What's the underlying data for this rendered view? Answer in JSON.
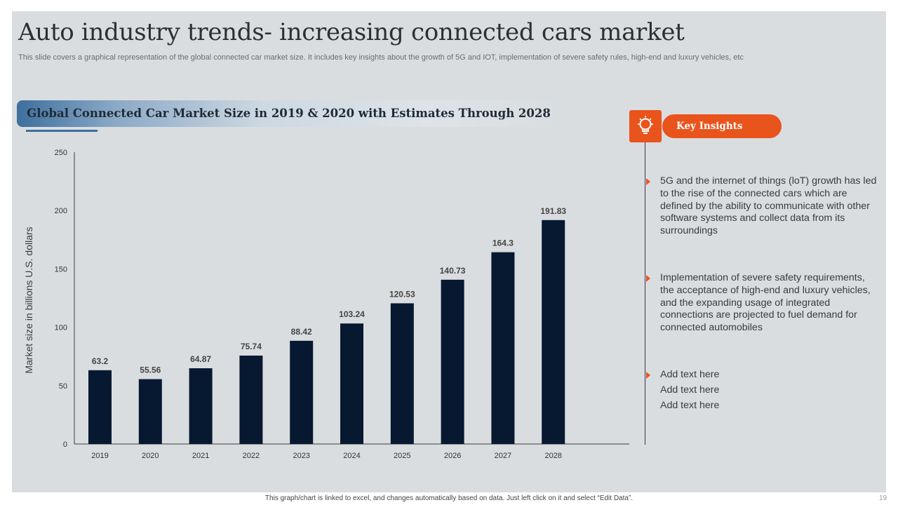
{
  "slide": {
    "title": "Auto industry trends- increasing connected cars market",
    "subtitle": "This slide covers a graphical representation of the global connected car market size. It includes key insights about the growth of 5G and IOT,  implementation of severe safety rules, high-end and luxury vehicles, etc",
    "footer_note": "This graph/chart is linked to excel, and changes automatically based on data. Just left click on it and select “Edit Data”.",
    "page_number": "19"
  },
  "colors": {
    "bar": "#071930",
    "accent": "#e8541c",
    "banner_blue": "#3e6f9e"
  },
  "chart_data": {
    "type": "bar",
    "title": "Global Connected Car Market Size in 2019 & 2020 with Estimates Through 2028",
    "categories": [
      "2019",
      "2020",
      "2021",
      "2022",
      "2023",
      "2024",
      "2025",
      "2026",
      "2027",
      "2028"
    ],
    "values": [
      63.2,
      55.56,
      64.87,
      75.74,
      88.42,
      103.24,
      120.53,
      140.73,
      164.3,
      191.83
    ],
    "value_labels": [
      "63.2",
      "55.56",
      "64.87",
      "75.74",
      "88.42",
      "103.24",
      "120.53",
      "140.73",
      "164.3",
      "191.83"
    ],
    "xlabel": "",
    "ylabel": "Market size in billions U.S. dollars",
    "ylim": [
      0,
      250
    ],
    "yticks": [
      0,
      50,
      100,
      150,
      200,
      250
    ],
    "ytick_labels": [
      "0",
      "50",
      "100",
      "150",
      "200",
      "250"
    ],
    "grid": false,
    "legend": "none"
  },
  "insights": {
    "heading": "Key Insights",
    "icon": "lightbulb-icon",
    "items": [
      "5G and the internet of things (loT) growth has led to the rise of the connected cars which are defined by the ability to communicate with other software systems and collect data from its surroundings",
      "Implementation of severe safety requirements, the acceptance of high-end and luxury vehicles, and the expanding usage of integrated connections are projected to fuel demand for connected automobiles"
    ],
    "add_text": [
      "Add text here",
      "Add text here",
      "Add text here"
    ]
  }
}
